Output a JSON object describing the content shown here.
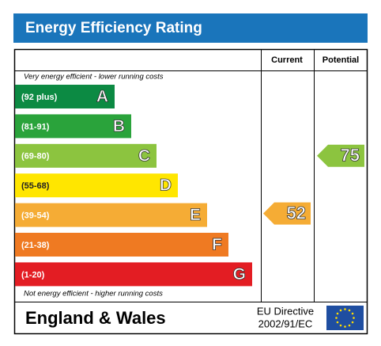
{
  "title": "Energy Efficiency Rating",
  "columns": [
    "Current",
    "Potential"
  ],
  "top_note": "Very energy efficient - lower running costs",
  "bottom_note": "Not energy efficient - higher running costs",
  "bands": [
    {
      "range": "(92 plus)",
      "letter": "A",
      "color": "#0c8a43"
    },
    {
      "range": "(81-91)",
      "letter": "B",
      "color": "#2aa33b"
    },
    {
      "range": "(69-80)",
      "letter": "C",
      "color": "#8cc43f"
    },
    {
      "range": "(55-68)",
      "letter": "D",
      "color": "#ffe600"
    },
    {
      "range": "(39-54)",
      "letter": "E",
      "color": "#f5ac35"
    },
    {
      "range": "(21-38)",
      "letter": "F",
      "color": "#ef7a22"
    },
    {
      "range": "(1-20)",
      "letter": "G",
      "color": "#e31d23"
    }
  ],
  "current": {
    "value": 52,
    "color": "#f5ac35"
  },
  "potential": {
    "value": 75,
    "color": "#8cc43f"
  },
  "footer": {
    "region": "England & Wales",
    "directive_line1": "EU Directive",
    "directive_line2": "2002/91/EC"
  }
}
